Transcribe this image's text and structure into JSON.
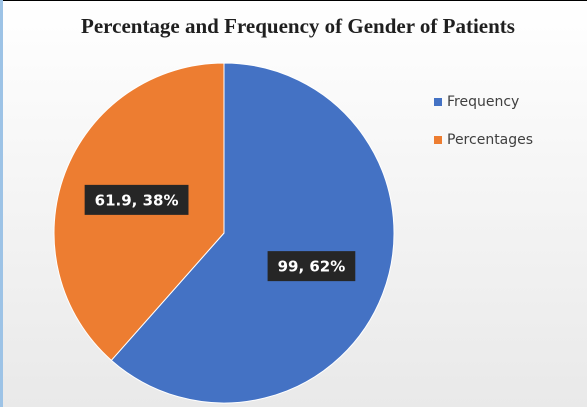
{
  "chart_data": {
    "type": "pie",
    "title": "Percentage and Frequency of Gender of Patients",
    "categories": [
      "Frequency",
      "Percentages"
    ],
    "values": [
      99,
      61.9
    ],
    "value_labels": [
      "99, 62%",
      "61.9, 38%"
    ],
    "colors": [
      "#4472c4",
      "#ed7d31"
    ],
    "legend": "right"
  }
}
